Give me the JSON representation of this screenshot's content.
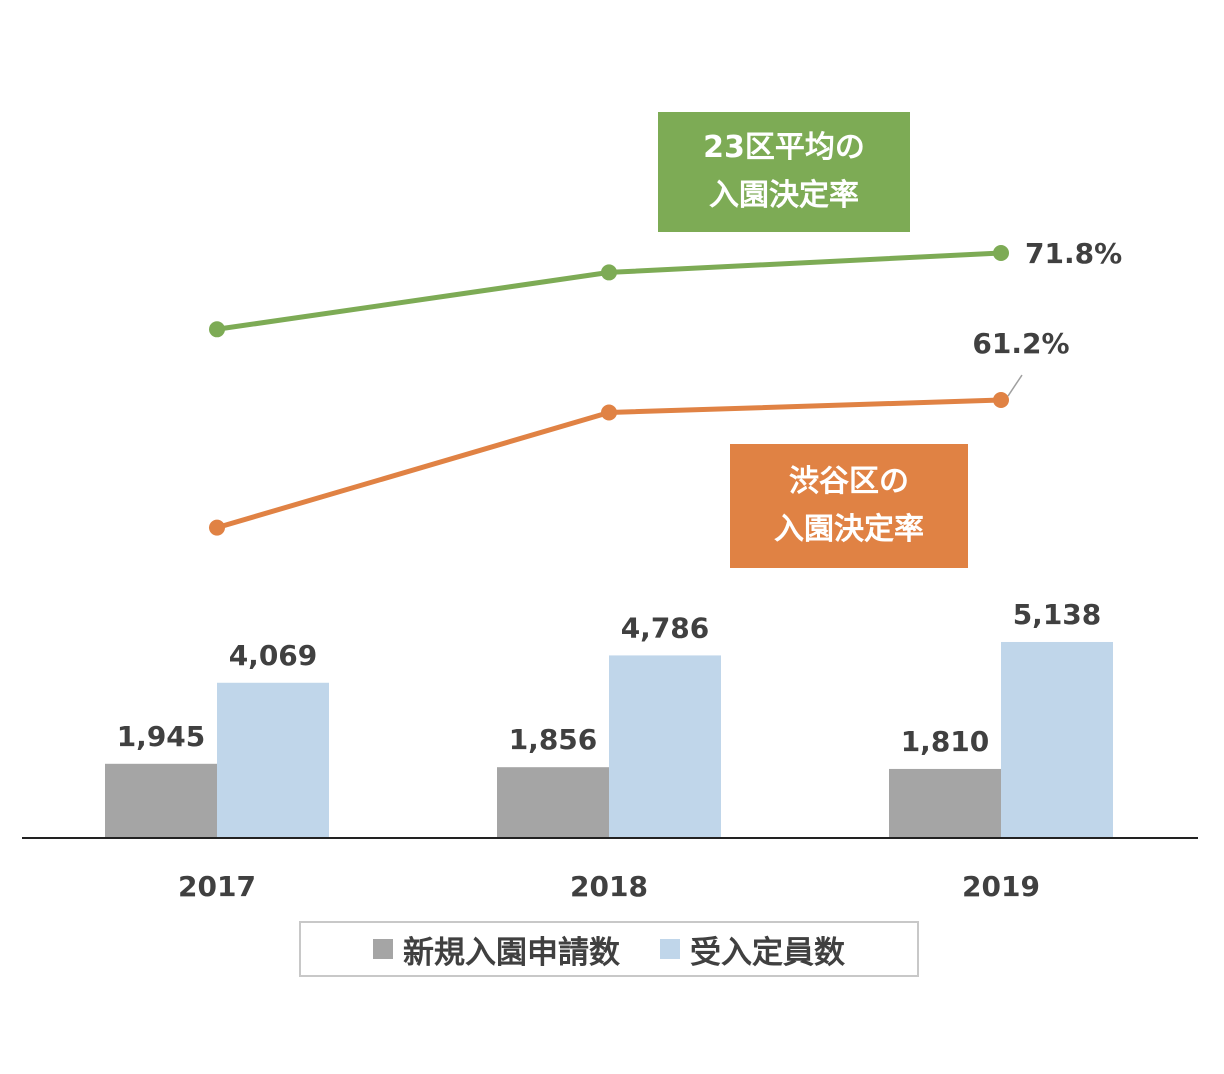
{
  "chart_data": {
    "type": "bar+line",
    "categories": [
      "2017",
      "2018",
      "2019"
    ],
    "bar_series": [
      {
        "name": "新規入園申請数",
        "values": [
          1945,
          1856,
          1810
        ],
        "labels": [
          "1,945",
          "1,856",
          "1,810"
        ],
        "color": "#a5a5a5"
      },
      {
        "name": "受入定員数",
        "values": [
          4069,
          4786,
          5138
        ],
        "labels": [
          "4,069",
          "4,786",
          "5,138"
        ],
        "color": "#c0d6ea"
      }
    ],
    "line_series": [
      {
        "name": "23区平均の入園決定率",
        "values": [
          66.3,
          70.4,
          71.8
        ],
        "last_label": "71.8%",
        "color": "#7dab55",
        "tag_lines": [
          "23区平均の",
          "入園決定率"
        ]
      },
      {
        "name": "渋谷区の入園決定率",
        "values": [
          52.0,
          60.3,
          61.2
        ],
        "last_label": "61.2%",
        "color": "#e08244",
        "tag_lines": [
          "渋谷区の",
          "入園決定率"
        ]
      }
    ],
    "legend": [
      "新規入園申請数",
      "受入定員数"
    ],
    "legend_position": "bottom",
    "grid": false
  }
}
